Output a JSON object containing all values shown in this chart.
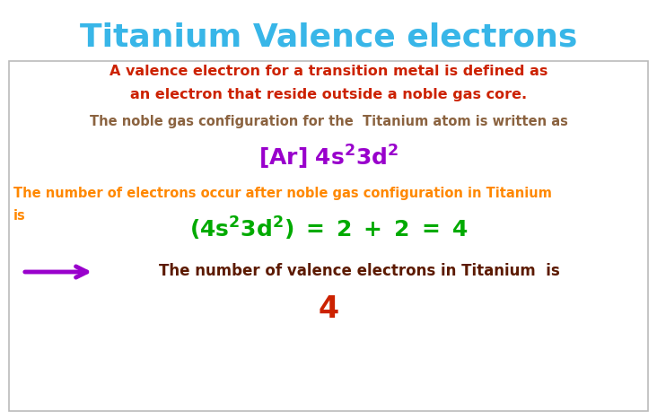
{
  "title": "Titanium Valence electrons",
  "title_color": "#38b6e8",
  "title_fontsize": 26,
  "bg_color": "#ffffff",
  "box_color": "#bbbbbb",
  "line1": "A valence electron for a transition metal is defined as",
  "line2": "an electron that reside outside a noble gas core.",
  "red_color": "#cc2200",
  "brown_color": "#8B6340",
  "orange_color": "#ff8800",
  "purple_color": "#9900cc",
  "green_color": "#00aa00",
  "darkred_color": "#5c1a00",
  "arrow_color": "#9900cc",
  "noble_gas_line": "The noble gas configuration for the  Titanium atom is written as",
  "valence_line1": "The number of electrons occur after noble gas configuration in Titanium",
  "valence_line2": "is",
  "final_line": "The number of valence electrons in Titanium  is",
  "final_number": "4"
}
